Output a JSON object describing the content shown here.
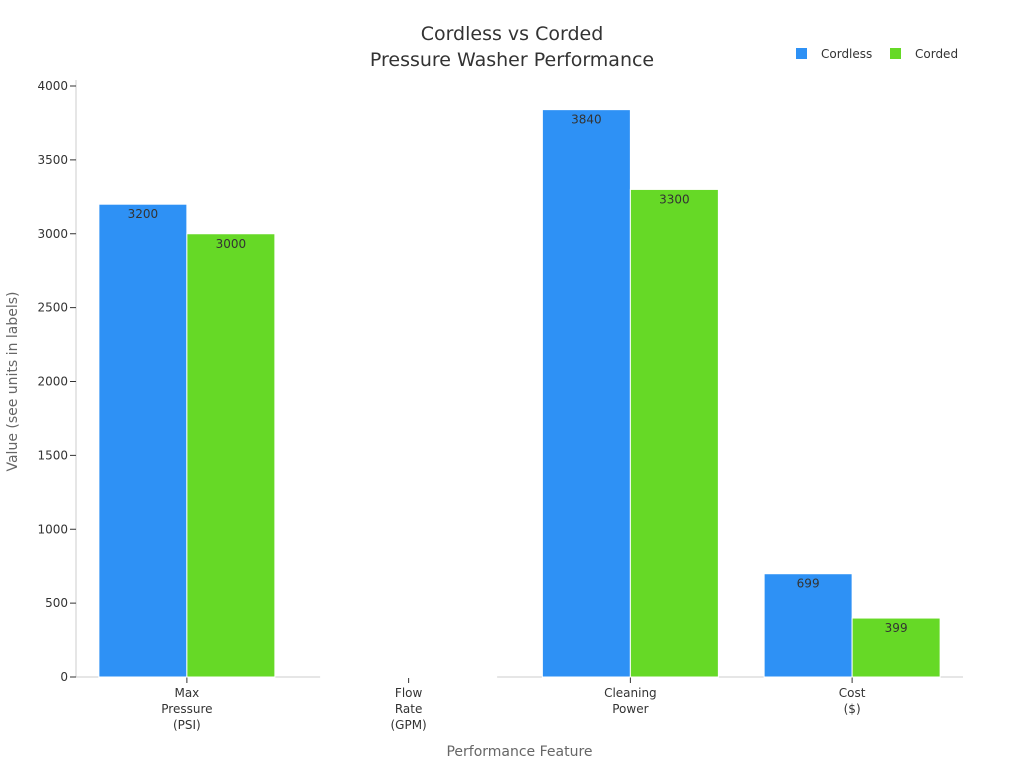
{
  "chart_data": {
    "type": "bar",
    "title": [
      "Cordless vs Corded",
      "Pressure Washer Performance"
    ],
    "xlabel": "Performance Feature",
    "ylabel": "Value (see units in labels)",
    "categories": [
      [
        "Max",
        "Pressure",
        "(PSI)"
      ],
      [
        "Flow",
        "Rate",
        "(GPM)"
      ],
      [
        "Cleaning",
        "Power"
      ],
      [
        "Cost",
        "($)"
      ]
    ],
    "series": [
      {
        "name": "Cordless",
        "color": "#2e91f5",
        "values": [
          3200,
          0,
          3840,
          699
        ],
        "labels": [
          "3200",
          "",
          "3840",
          "699"
        ]
      },
      {
        "name": "Corded",
        "color": "#66d926",
        "values": [
          3000,
          0,
          3300,
          399
        ],
        "labels": [
          "3000",
          "",
          "3300",
          "399"
        ]
      }
    ],
    "ylim": [
      0,
      4000
    ],
    "yticks": [
      0,
      500,
      1000,
      1500,
      2000,
      2500,
      3000,
      3500,
      4000
    ],
    "grid": false,
    "legend_position": "top-right"
  }
}
